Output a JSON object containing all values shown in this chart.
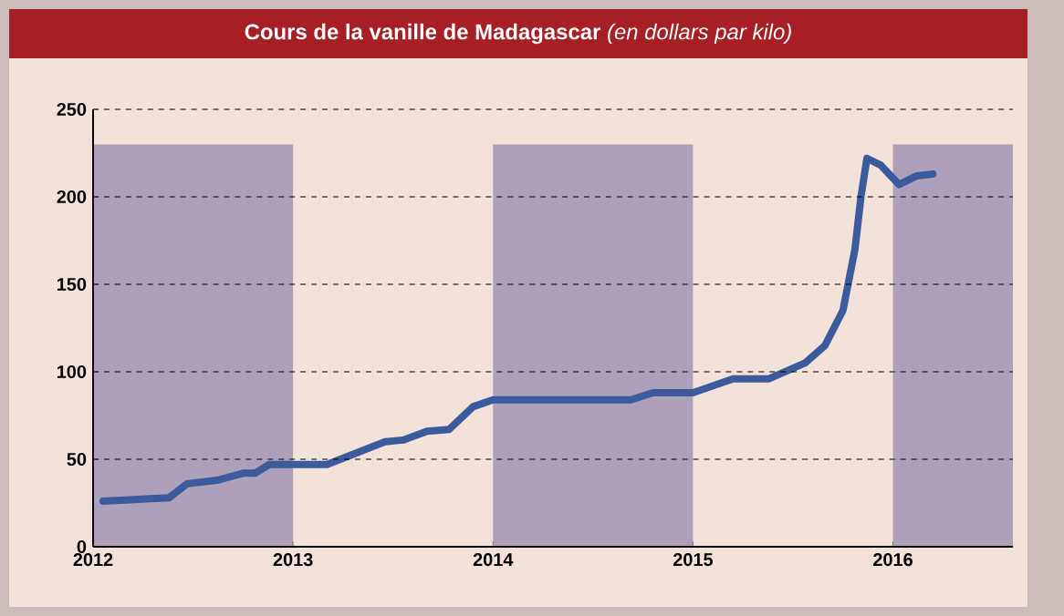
{
  "chart_data": {
    "type": "line",
    "title": "**Cours de la vanille de Madagascar** *(en dollars par kilo)*",
    "x": [
      2012.05,
      2012.38,
      2012.47,
      2012.62,
      2012.75,
      2012.81,
      2012.88,
      2013.17,
      2013.46,
      2013.55,
      2013.67,
      2013.78,
      2013.9,
      2014.0,
      2014.69,
      2014.8,
      2015.0,
      2015.2,
      2015.38,
      2015.56,
      2015.66,
      2015.75,
      2015.81,
      2015.84,
      2015.87,
      2015.94,
      2016.03,
      2016.12,
      2016.2
    ],
    "values": [
      26,
      28,
      36,
      38,
      42,
      42,
      47,
      47,
      60,
      61,
      66,
      67,
      80,
      84,
      84,
      88,
      88,
      96,
      96,
      105,
      115,
      135,
      170,
      200,
      222,
      218,
      207,
      212,
      213
    ],
    "color": "#3b5b9d",
    "xlim": [
      2012,
      2016.6
    ],
    "xticks": [
      2012,
      2013,
      2014,
      2015,
      2016
    ],
    "ylim": [
      0,
      250
    ],
    "yticks": [
      0,
      50,
      100,
      150,
      200,
      250
    ],
    "grid": "y",
    "line_style": "solid",
    "marker": "none",
    "bands": [
      {
        "axis": "x",
        "from": 2012,
        "to": 2013,
        "color": "#aca0ba"
      },
      {
        "axis": "x",
        "from": 2014,
        "to": 2015,
        "color": "#aca0ba"
      },
      {
        "axis": "x",
        "from": 2016,
        "to": 2016.6,
        "color": "#aca0ba"
      }
    ]
  }
}
